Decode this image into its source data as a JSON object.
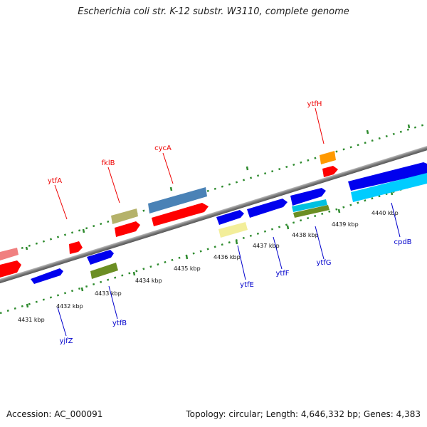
{
  "title": "Escherichia coli str. K-12 substr. W3110, complete genome",
  "accession_text": "Accession: AC_000091",
  "topology_text": "Topology: circular; Length: 4,646,332 bp; Genes: 4,383",
  "ticks": [
    "4431 kbp",
    "4432 kbp",
    "4433 kbp",
    "4434 kbp",
    "4435 kbp",
    "4436 kbp",
    "4437 kbp",
    "4438 kbp",
    "4439 kbp",
    "4440 kbp"
  ],
  "top_labels": [
    "ytfA",
    "fklB",
    "cycA",
    "ytfH"
  ],
  "bottom_labels": [
    "yjfZ",
    "ytfB",
    "ytfE",
    "ytfF",
    "ytfG",
    "cpdB"
  ],
  "colors": {
    "red": "#ff0000",
    "blue": "#0000ee",
    "pink": "#f08080",
    "olive": "#b5b26a",
    "steel": "#4a82b6",
    "orange": "#ff9900",
    "lightyellow": "#f3ee9a",
    "green": "#6b8e23",
    "cyan": "#00c0e0",
    "skyblue": "#00ccff",
    "top_label": "#ee0000",
    "bottom_label": "#0000cc",
    "backbone": "#8c8c8c",
    "tick": "#2e8b2e"
  }
}
